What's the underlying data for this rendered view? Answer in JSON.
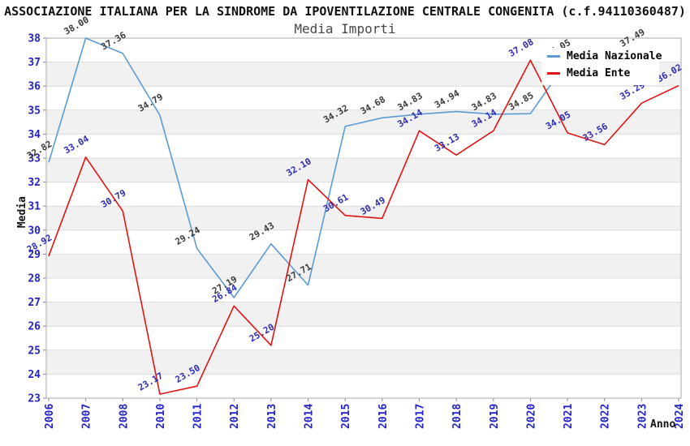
{
  "header": {
    "title": "ASSOCIAZIONE ITALIANA PER LA SINDROME DA IPOVENTILAZIONE CENTRALE CONGENITA (c.f.94110360487)",
    "subtitle": "Media Importi"
  },
  "chart_data": {
    "type": "line",
    "title": "Media Importi",
    "xlabel": "Anno",
    "ylabel": "Media",
    "ylim": [
      23,
      38
    ],
    "y_tick_step": 1,
    "grid": "horizontal gridlines with alternating gray bands",
    "legend_position": "top-right",
    "categories": [
      "2006",
      "2007",
      "2008",
      "2010",
      "2011",
      "2012",
      "2013",
      "2014",
      "2015",
      "2016",
      "2017",
      "2018",
      "2019",
      "2020",
      "2021",
      "2022",
      "2023",
      "2024"
    ],
    "series": [
      {
        "name": "Media Nazionale",
        "color": "#5b9bd5",
        "label_color": "#3a3a3a",
        "values": [
          32.82,
          38.0,
          37.36,
          34.79,
          29.24,
          27.19,
          29.43,
          27.71,
          34.32,
          34.68,
          34.83,
          34.94,
          34.83,
          34.85,
          37.05,
          null,
          37.49,
          null
        ]
      },
      {
        "name": "Media Ente",
        "color": "#e11414",
        "label_color": "#2d2db4",
        "values": [
          28.92,
          33.04,
          30.79,
          23.17,
          23.5,
          26.84,
          25.2,
          32.1,
          30.61,
          30.49,
          34.14,
          33.13,
          34.14,
          37.08,
          34.05,
          33.56,
          35.29,
          36.02
        ]
      }
    ],
    "colors": {
      "tick_label": "#2323cc",
      "band": "#f1f1f1",
      "gridline": "#dcdcdc",
      "plot_border": "#aaaaaa"
    }
  }
}
